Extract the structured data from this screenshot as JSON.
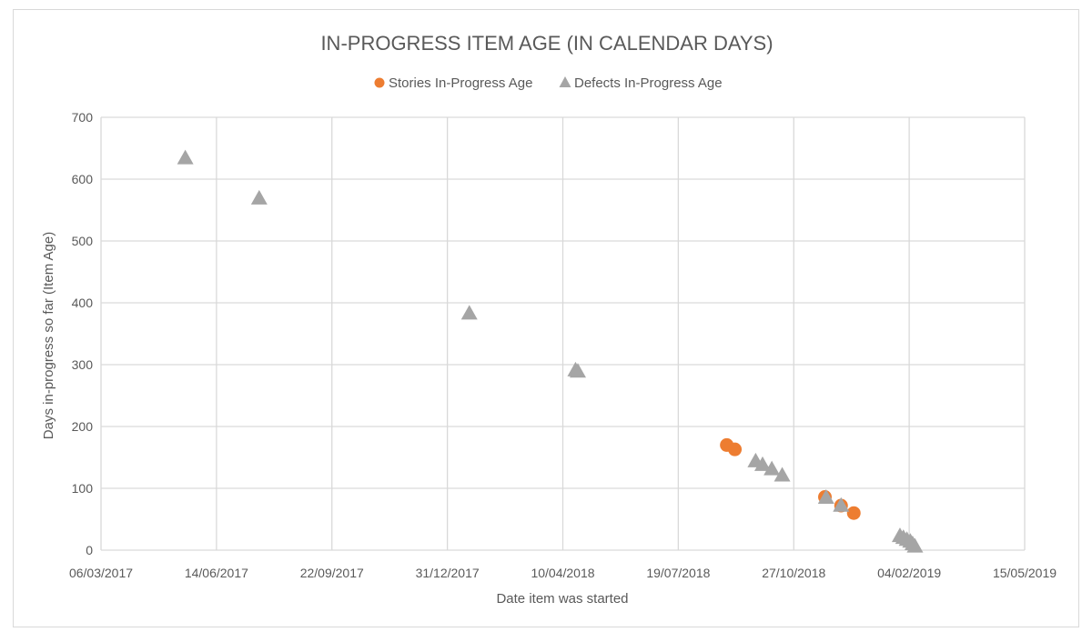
{
  "chart_data": {
    "type": "scatter",
    "title": "IN-PROGRESS ITEM AGE (IN CALENDAR DAYS)",
    "xlabel": "Date item was started",
    "ylabel": "Days in-progress so far (Item Age)",
    "xlim": [
      "2017-03-06",
      "2019-05-15"
    ],
    "ylim": [
      0,
      700
    ],
    "x_ticks": [
      "06/03/2017",
      "14/06/2017",
      "22/09/2017",
      "31/12/2017",
      "10/04/2018",
      "19/07/2018",
      "27/10/2018",
      "04/02/2019",
      "15/05/2019"
    ],
    "y_ticks": [
      "0",
      "100",
      "200",
      "300",
      "400",
      "500",
      "600",
      "700"
    ],
    "grid": true,
    "legend_position": "top",
    "series": [
      {
        "name": "Stories In-Progress Age",
        "marker": "circle",
        "color": "#ED7D31",
        "points": [
          {
            "x": "2018-08-30",
            "y": 170
          },
          {
            "x": "2018-09-06",
            "y": 163
          },
          {
            "x": "2018-11-23",
            "y": 86
          },
          {
            "x": "2018-12-07",
            "y": 72
          },
          {
            "x": "2018-12-18",
            "y": 60
          }
        ]
      },
      {
        "name": "Defects In-Progress Age",
        "marker": "triangle",
        "color": "#A5A5A5",
        "points": [
          {
            "x": "2017-05-18",
            "y": 633
          },
          {
            "x": "2017-07-21",
            "y": 568
          },
          {
            "x": "2018-01-19",
            "y": 382
          },
          {
            "x": "2018-04-21",
            "y": 290
          },
          {
            "x": "2018-04-23",
            "y": 288
          },
          {
            "x": "2018-09-24",
            "y": 143
          },
          {
            "x": "2018-09-30",
            "y": 137
          },
          {
            "x": "2018-10-08",
            "y": 130
          },
          {
            "x": "2018-10-17",
            "y": 120
          },
          {
            "x": "2018-11-24",
            "y": 84
          },
          {
            "x": "2018-12-07",
            "y": 71
          },
          {
            "x": "2019-01-27",
            "y": 22
          },
          {
            "x": "2019-01-30",
            "y": 19
          },
          {
            "x": "2019-02-02",
            "y": 16
          },
          {
            "x": "2019-02-05",
            "y": 13
          },
          {
            "x": "2019-02-07",
            "y": 9
          },
          {
            "x": "2019-02-09",
            "y": 5
          }
        ]
      }
    ]
  }
}
